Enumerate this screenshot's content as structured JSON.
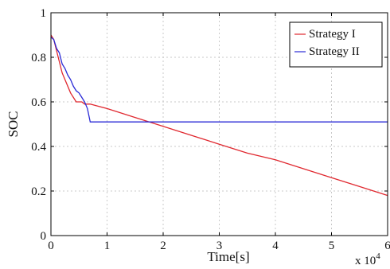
{
  "chart_data": {
    "type": "line",
    "title": "",
    "xlabel": "Time[s]",
    "ylabel": "SOC",
    "x_multiplier_label": "x 10",
    "x_multiplier_exponent": "4",
    "xlim": [
      0,
      60000
    ],
    "ylim": [
      0,
      1
    ],
    "xticks": [
      0,
      10000,
      20000,
      30000,
      40000,
      50000,
      60000
    ],
    "xtick_labels": [
      "0",
      "1",
      "2",
      "3",
      "4",
      "5",
      "6"
    ],
    "yticks": [
      0,
      0.2,
      0.4,
      0.6,
      0.8,
      1
    ],
    "ytick_labels": [
      "0",
      "0.2",
      "0.4",
      "0.6",
      "0.8",
      "1"
    ],
    "grid": true,
    "legend_position": "top-right",
    "series": [
      {
        "name": "Strategy I",
        "color": "#e0282f",
        "x": [
          0,
          500,
          1000,
          1500,
          2000,
          2500,
          3000,
          3500,
          4000,
          4500,
          5000,
          5500,
          6000,
          7000,
          10000,
          15000,
          20000,
          25000,
          30000,
          35000,
          40000,
          45000,
          50000,
          55000,
          60000
        ],
        "y": [
          0.9,
          0.88,
          0.83,
          0.78,
          0.73,
          0.7,
          0.67,
          0.64,
          0.62,
          0.6,
          0.6,
          0.6,
          0.59,
          0.59,
          0.57,
          0.53,
          0.49,
          0.45,
          0.41,
          0.37,
          0.34,
          0.3,
          0.26,
          0.22,
          0.18
        ]
      },
      {
        "name": "Strategy II",
        "color": "#2a2ad6",
        "x": [
          0,
          500,
          1000,
          1500,
          2000,
          2500,
          3000,
          3500,
          4000,
          4500,
          5000,
          5500,
          6000,
          6500,
          7000,
          10000,
          20000,
          30000,
          40000,
          50000,
          60000
        ],
        "y": [
          0.89,
          0.88,
          0.84,
          0.82,
          0.77,
          0.75,
          0.72,
          0.7,
          0.67,
          0.65,
          0.64,
          0.62,
          0.6,
          0.57,
          0.51,
          0.51,
          0.51,
          0.51,
          0.51,
          0.51,
          0.51
        ]
      }
    ]
  }
}
